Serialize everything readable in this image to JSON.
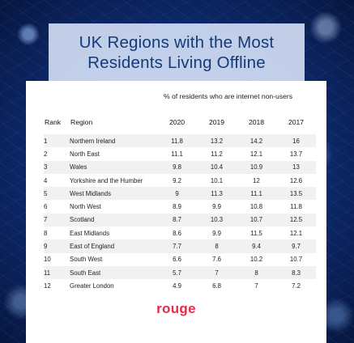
{
  "title": {
    "line1": "UK Regions with the Most",
    "line2": "Residents Living Offline"
  },
  "subheading": "% of residents who are internet non-users",
  "table": {
    "headers": {
      "rank": "Rank",
      "region": "Region",
      "y2020": "2020",
      "y2019": "2019",
      "y2018": "2018",
      "y2017": "2017"
    },
    "rows": [
      {
        "rank": "1",
        "region": "Northern Ireland",
        "y2020": "11.8",
        "y2019": "13.2",
        "y2018": "14.2",
        "y2017": "16"
      },
      {
        "rank": "2",
        "region": "North East",
        "y2020": "11.1",
        "y2019": "11.2",
        "y2018": "12.1",
        "y2017": "13.7"
      },
      {
        "rank": "3",
        "region": "Wales",
        "y2020": "9.8",
        "y2019": "10.4",
        "y2018": "10.9",
        "y2017": "13"
      },
      {
        "rank": "4",
        "region": "Yorkshire and the Humber",
        "y2020": "9.2",
        "y2019": "10.1",
        "y2018": "12",
        "y2017": "12.6"
      },
      {
        "rank": "5",
        "region": "West Midlands",
        "y2020": "9",
        "y2019": "11.3",
        "y2018": "11.1",
        "y2017": "13.5"
      },
      {
        "rank": "6",
        "region": "North West",
        "y2020": "8.9",
        "y2019": "9.9",
        "y2018": "10.8",
        "y2017": "11.8"
      },
      {
        "rank": "7",
        "region": "Scotland",
        "y2020": "8.7",
        "y2019": "10.3",
        "y2018": "10.7",
        "y2017": "12.5"
      },
      {
        "rank": "8",
        "region": "East Midlands",
        "y2020": "8.6",
        "y2019": "9.9",
        "y2018": "11.5",
        "y2017": "12.1"
      },
      {
        "rank": "9",
        "region": "East of England",
        "y2020": "7.7",
        "y2019": "8",
        "y2018": "9.4",
        "y2017": "9.7"
      },
      {
        "rank": "10",
        "region": "South West",
        "y2020": "6.6",
        "y2019": "7.6",
        "y2018": "10.2",
        "y2017": "10.7"
      },
      {
        "rank": "11",
        "region": "South East",
        "y2020": "5.7",
        "y2019": "7",
        "y2018": "8",
        "y2017": "8.3"
      },
      {
        "rank": "12",
        "region": "Greater London",
        "y2020": "4.9",
        "y2019": "6.8",
        "y2018": "7",
        "y2017": "7.2"
      }
    ]
  },
  "logo_text": "rouge",
  "colors": {
    "title_text": "#143a78",
    "logo": "#e8294a",
    "background": "#0d2a6e"
  }
}
